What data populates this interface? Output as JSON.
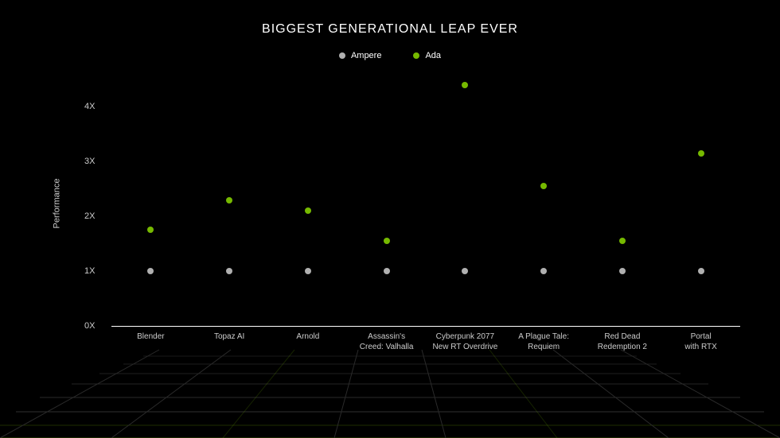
{
  "chart": {
    "type": "scatter",
    "title": "BIGGEST GENERATIONAL LEAP EVER",
    "title_fontsize": 16,
    "title_color": "#ffffff",
    "background_color": "#000000",
    "ylabel": "Performance",
    "label_fontsize": 11,
    "label_color": "#cccccc",
    "ylim": [
      0,
      4.5
    ],
    "yticks": [
      0,
      1,
      2,
      3,
      4
    ],
    "ytick_labels": [
      "0X",
      "1X",
      "2X",
      "3X",
      "4X"
    ],
    "baseline_y": 0,
    "baseline_color": "#ffffff",
    "categories": [
      "Blender",
      "Topaz AI",
      "Arnold",
      "Assassin's\nCreed: Valhalla",
      "Cyberpunk 2077\nNew RT Overdrive",
      "A Plague Tale:\nRequiem",
      "Red Dead\nRedemption 2",
      "Portal\nwith RTX"
    ],
    "series": [
      {
        "name": "Ampere",
        "color": "#b0b0b0",
        "marker_size": 8,
        "values": [
          1.0,
          1.0,
          1.0,
          1.0,
          1.0,
          1.0,
          1.0,
          1.0
        ]
      },
      {
        "name": "Ada",
        "color": "#76b900",
        "marker_size": 8,
        "values": [
          1.75,
          2.3,
          2.1,
          1.55,
          4.4,
          2.55,
          1.55,
          3.15
        ]
      }
    ],
    "legend": {
      "position": "top-center",
      "fontsize": 11,
      "dot_size": 8
    },
    "grid_floor": {
      "line_color_bright": "#76b90055",
      "line_color_dim": "#2a2a2a",
      "glow_color": "#76b900"
    }
  }
}
